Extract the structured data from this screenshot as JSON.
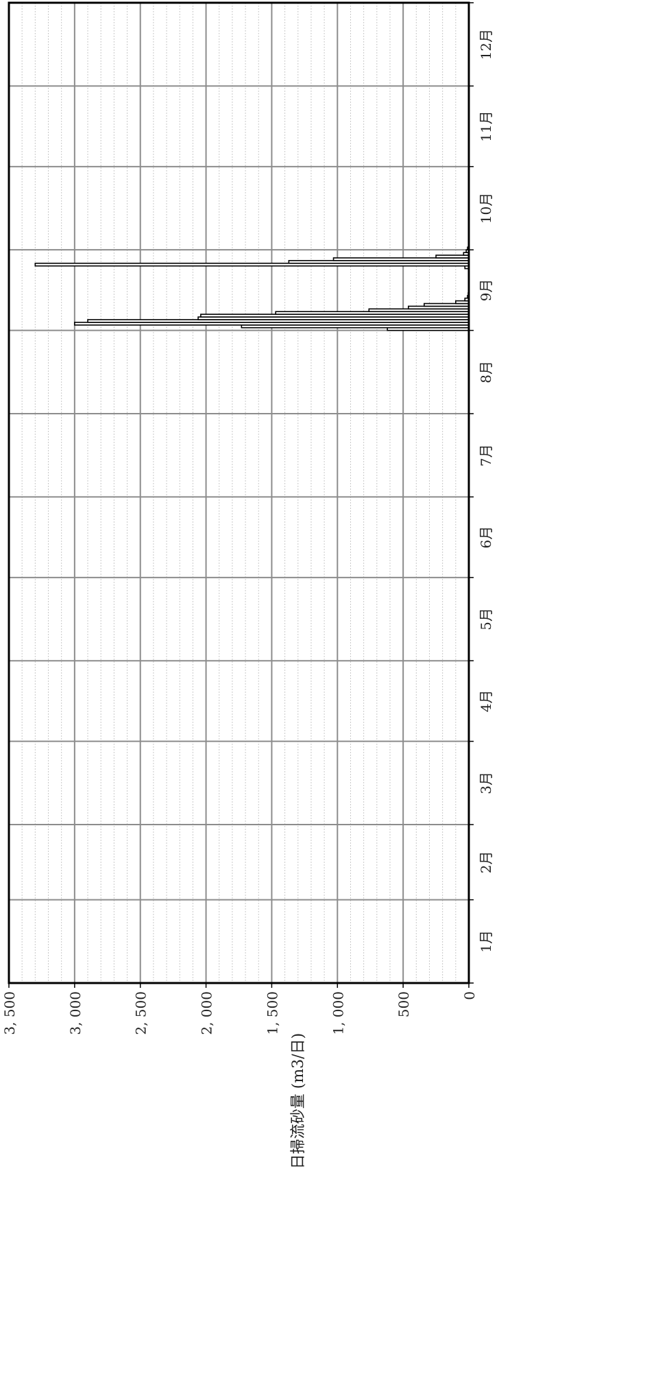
{
  "chart_data": {
    "type": "bar",
    "orientation": "rotated-90",
    "title": "",
    "ylabel": "日掃流砂量 (m3/日)",
    "xlabel": "",
    "ylim": [
      0,
      3500
    ],
    "y_ticks": [
      0,
      500,
      1000,
      1500,
      2000,
      2500,
      3000,
      3500
    ],
    "y_tick_labels": [
      "0",
      "500",
      "1, 000",
      "1, 500",
      "2, 000",
      "2, 500",
      "3, 000",
      "3, 500"
    ],
    "x_domain_days": [
      0,
      365
    ],
    "months": [
      "1月",
      "2月",
      "3月",
      "4月",
      "5月",
      "6月",
      "7月",
      "8月",
      "9月",
      "10月",
      "11月",
      "12月"
    ],
    "month_start_days": [
      0,
      31,
      59,
      90,
      120,
      151,
      181,
      212,
      243,
      273,
      304,
      334,
      365
    ],
    "grid": true,
    "minor_grid_step": 100,
    "legend": "none",
    "series": [
      {
        "days": [
          243,
          244,
          245,
          246,
          247,
          248,
          249,
          250,
          251,
          252,
          253,
          254,
          255,
          256,
          257,
          266,
          267,
          268,
          269,
          270,
          271,
          272,
          273
        ],
        "values": [
          620,
          1730,
          3000,
          2900,
          2060,
          2040,
          1470,
          760,
          460,
          340,
          100,
          30,
          10,
          5,
          2,
          30,
          3300,
          1370,
          1030,
          250,
          40,
          20,
          10
        ]
      }
    ]
  }
}
